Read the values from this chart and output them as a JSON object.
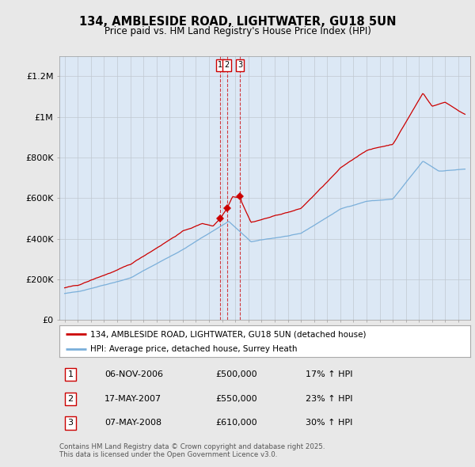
{
  "title": "134, AMBLESIDE ROAD, LIGHTWATER, GU18 5UN",
  "subtitle": "Price paid vs. HM Land Registry's House Price Index (HPI)",
  "background_color": "#e8e8e8",
  "plot_bg_color": "#dce8f5",
  "red_line_color": "#cc0000",
  "blue_line_color": "#7aafda",
  "ylim": [
    0,
    1300000
  ],
  "yticks": [
    0,
    200000,
    400000,
    600000,
    800000,
    1000000,
    1200000
  ],
  "ytick_labels": [
    "£0",
    "£200K",
    "£400K",
    "£600K",
    "£800K",
    "£1M",
    "£1.2M"
  ],
  "legend_red": "134, AMBLESIDE ROAD, LIGHTWATER, GU18 5UN (detached house)",
  "legend_blue": "HPI: Average price, detached house, Surrey Heath",
  "transaction1_num": "1",
  "transaction1_date": "06-NOV-2006",
  "transaction1_price": "£500,000",
  "transaction1_hpi": "17% ↑ HPI",
  "transaction1_year": 2006.85,
  "transaction1_value": 500000,
  "transaction2_num": "2",
  "transaction2_date": "17-MAY-2007",
  "transaction2_price": "£550,000",
  "transaction2_hpi": "23% ↑ HPI",
  "transaction2_year": 2007.37,
  "transaction2_value": 550000,
  "transaction3_num": "3",
  "transaction3_date": "07-MAY-2008",
  "transaction3_price": "£610,000",
  "transaction3_hpi": "30% ↑ HPI",
  "transaction3_year": 2008.35,
  "transaction3_value": 610000,
  "footer": "Contains HM Land Registry data © Crown copyright and database right 2025.\nThis data is licensed under the Open Government Licence v3.0."
}
